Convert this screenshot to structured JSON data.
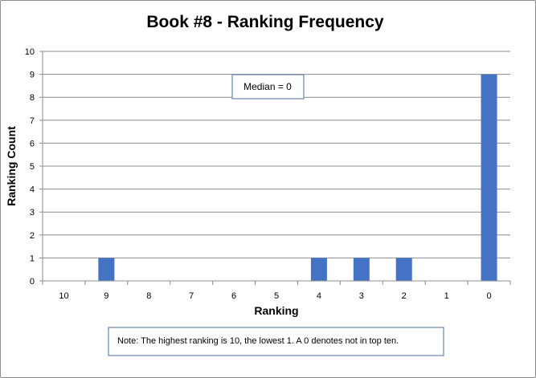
{
  "chart_data": {
    "type": "bar",
    "title": "Book #8 - Ranking Frequency",
    "xlabel": "Ranking",
    "ylabel": "Ranking Count",
    "categories": [
      "10",
      "9",
      "8",
      "7",
      "6",
      "5",
      "4",
      "3",
      "2",
      "1",
      "0"
    ],
    "values": [
      0,
      1,
      0,
      0,
      0,
      0,
      1,
      1,
      1,
      0,
      9
    ],
    "ylim": [
      0,
      10
    ],
    "yticks": [
      "0",
      "1",
      "2",
      "3",
      "4",
      "5",
      "6",
      "7",
      "8",
      "9",
      "10"
    ],
    "grid": true,
    "bar_color": "#4472C4",
    "annotations": {
      "median": "Median = 0",
      "note": "Note: The highest ranking is 10, the lowest 1. A 0 denotes not in top ten."
    }
  }
}
